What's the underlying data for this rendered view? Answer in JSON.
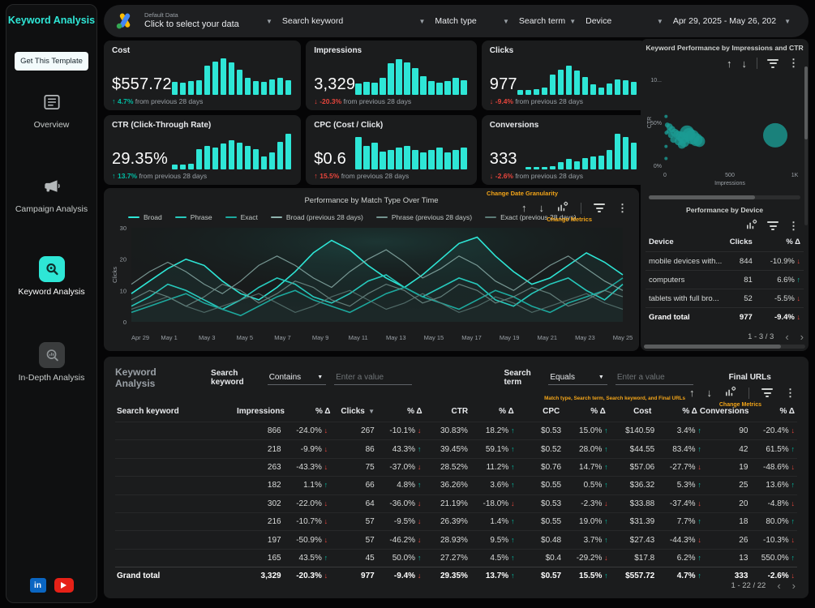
{
  "colors": {
    "accent": "#2ee6d6",
    "positive": "#00bfa5",
    "negative": "#e8453c",
    "annotation": "#f2a418",
    "linkedin": "#0a66c2",
    "youtube": "#e62117"
  },
  "sidebar": {
    "title": "Keyword Analysis",
    "cta": "Get This Template",
    "items": [
      {
        "label": "Overview",
        "icon": "document-icon",
        "active": false
      },
      {
        "label": "Campaign Analysis",
        "icon": "megaphone-icon",
        "active": false
      },
      {
        "label": "Keyword Analysis",
        "icon": "keyword-search-icon",
        "active": true
      },
      {
        "label": "In-Depth Analysis",
        "icon": "magnifier-chart-icon",
        "active": false
      }
    ],
    "social": [
      "linkedin",
      "youtube"
    ]
  },
  "topbar": {
    "data_source_label": "Default Data",
    "data_source_value": "Click to select your data",
    "filters": [
      {
        "label": "Search keyword"
      },
      {
        "label": "Match type"
      },
      {
        "label": "Search term"
      },
      {
        "label": "Device"
      }
    ],
    "date_range": "Apr 29, 2025 - May 26, 202"
  },
  "scorecards": [
    {
      "id": "cost",
      "title": "Cost",
      "value": "$557.72",
      "delta": "4.7%",
      "dir": "up",
      "tone": "good",
      "compare": "from previous 28 days",
      "spark": [
        0.35,
        0.33,
        0.36,
        0.4,
        0.78,
        0.9,
        0.97,
        0.88,
        0.68,
        0.45,
        0.36,
        0.35,
        0.42,
        0.46,
        0.4
      ]
    },
    {
      "id": "impressions",
      "title": "Impressions",
      "value": "3,329",
      "delta": "-20.3%",
      "dir": "down",
      "tone": "bad",
      "compare": "from previous 28 days",
      "spark": [
        0.3,
        0.34,
        0.32,
        0.45,
        0.85,
        0.95,
        0.88,
        0.72,
        0.5,
        0.36,
        0.32,
        0.36,
        0.46,
        0.4
      ]
    },
    {
      "id": "clicks",
      "title": "Clicks",
      "value": "977",
      "delta": "-9.4%",
      "dir": "down",
      "tone": "bad",
      "compare": "from previous 28 days",
      "spark": [
        0.12,
        0.12,
        0.15,
        0.2,
        0.55,
        0.68,
        0.78,
        0.65,
        0.48,
        0.28,
        0.2,
        0.3,
        0.42,
        0.4,
        0.34
      ]
    },
    {
      "id": "ctr",
      "title": "CTR (Click-Through Rate)",
      "value": "29.35%",
      "delta": "13.7%",
      "dir": "up",
      "tone": "good",
      "compare": "from previous 28 days",
      "spark": [
        0.12,
        0.13,
        0.15,
        0.55,
        0.62,
        0.58,
        0.7,
        0.78,
        0.72,
        0.62,
        0.55,
        0.35,
        0.45,
        0.75,
        0.95
      ]
    },
    {
      "id": "cpc",
      "title": "CPC (Cost / Click)",
      "value": "$0.6",
      "delta": "15.5%",
      "dir": "up",
      "tone": "bad",
      "compare": "from previous 28 days",
      "spark": [
        0.88,
        0.62,
        0.72,
        0.48,
        0.52,
        0.58,
        0.62,
        0.52,
        0.46,
        0.52,
        0.58,
        0.46,
        0.52,
        0.58
      ]
    },
    {
      "id": "conversions",
      "title": "Conversions",
      "value": "333",
      "delta": "-2.6%",
      "dir": "down",
      "tone": "bad",
      "compare": "from previous 28 days",
      "spark": [
        0.06,
        0.06,
        0.07,
        0.08,
        0.2,
        0.28,
        0.22,
        0.3,
        0.34,
        0.38,
        0.52,
        0.95,
        0.88,
        0.72
      ]
    }
  ],
  "line_chart": {
    "type": "line",
    "title": "Performance by Match Type Over Time",
    "annotation_granularity": "Change Date Granularity",
    "annotation_metrics": "Change Metrics",
    "ylabel": "Clicks",
    "yticks": [
      0,
      10,
      20,
      30
    ],
    "ymax": 30,
    "xticks": [
      "Apr 29",
      "May 1",
      "May 3",
      "May 5",
      "May 7",
      "May 9",
      "May 11",
      "May 13",
      "May 15",
      "May 17",
      "May 19",
      "May 21",
      "May 23",
      "May 25"
    ],
    "series": [
      {
        "name": "Broad",
        "color": "#2ee6d6",
        "values": [
          9,
          13,
          17,
          20,
          18,
          13,
          9,
          7,
          11,
          16,
          22,
          26,
          23,
          18,
          14,
          11,
          15,
          20,
          25,
          27,
          21,
          16,
          12,
          14,
          18,
          22,
          19,
          15
        ]
      },
      {
        "name": "Phrase",
        "color": "#27c9bc",
        "values": [
          5,
          8,
          12,
          10,
          7,
          4,
          7,
          11,
          14,
          12,
          8,
          6,
          9,
          13,
          15,
          11,
          8,
          11,
          14,
          12,
          7,
          5,
          9,
          12,
          14,
          10,
          7,
          12
        ]
      },
      {
        "name": "Exact",
        "color": "#1da99e",
        "values": [
          3,
          5,
          7,
          9,
          6,
          4,
          2,
          5,
          8,
          10,
          7,
          5,
          3,
          6,
          9,
          11,
          8,
          6,
          4,
          7,
          10,
          8,
          5,
          3,
          6,
          8,
          10,
          14
        ]
      },
      {
        "name": "Broad (previous 28 days)",
        "color": "#8fb3ae",
        "values": [
          12,
          16,
          19,
          16,
          12,
          9,
          13,
          18,
          21,
          18,
          14,
          11,
          16,
          20,
          23,
          19,
          14,
          17,
          21,
          18,
          13,
          10,
          14,
          18,
          21,
          17,
          13,
          10
        ]
      },
      {
        "name": "Phrase (previous 28 days)",
        "color": "#74938f",
        "values": [
          7,
          10,
          8,
          5,
          8,
          12,
          10,
          6,
          9,
          13,
          11,
          7,
          5,
          9,
          12,
          10,
          6,
          8,
          12,
          10,
          6,
          8,
          11,
          9,
          5,
          7,
          10,
          8
        ]
      },
      {
        "name": "Exact (previous 28 days)",
        "color": "#5c7b77",
        "values": [
          4,
          6,
          8,
          5,
          3,
          5,
          7,
          9,
          6,
          3,
          5,
          8,
          10,
          7,
          4,
          6,
          9,
          6,
          3,
          5,
          8,
          6,
          3,
          5,
          7,
          9,
          6,
          4
        ]
      }
    ]
  },
  "scatter": {
    "type": "scatter",
    "title": "Keyword Performance by Impressions and CTR",
    "xlabel": "Impressions",
    "ylabel": "CTR",
    "xticks": [
      "0",
      "500",
      "1K"
    ],
    "yticks": [
      "0%",
      "50%",
      "10..."
    ],
    "xmax": 1000,
    "ymax": 100,
    "points": [
      {
        "x": 8,
        "y": 57,
        "r": 2
      },
      {
        "x": 18,
        "y": 47,
        "r": 3
      },
      {
        "x": 35,
        "y": 45,
        "r": 4
      },
      {
        "x": 30,
        "y": 40,
        "r": 3
      },
      {
        "x": 12,
        "y": 38,
        "r": 2.5
      },
      {
        "x": 55,
        "y": 42,
        "r": 4
      },
      {
        "x": 75,
        "y": 38,
        "r": 5
      },
      {
        "x": 45,
        "y": 35,
        "r": 3.5
      },
      {
        "x": 95,
        "y": 36,
        "r": 5
      },
      {
        "x": 120,
        "y": 34,
        "r": 6
      },
      {
        "x": 65,
        "y": 30,
        "r": 4
      },
      {
        "x": 105,
        "y": 28,
        "r": 5
      },
      {
        "x": 140,
        "y": 32,
        "r": 7
      },
      {
        "x": 170,
        "y": 38,
        "r": 9
      },
      {
        "x": 185,
        "y": 36,
        "r": 8
      },
      {
        "x": 210,
        "y": 33,
        "r": 9
      },
      {
        "x": 240,
        "y": 30,
        "r": 8
      },
      {
        "x": 150,
        "y": 27,
        "r": 6
      },
      {
        "x": 265,
        "y": 28,
        "r": 7
      },
      {
        "x": 130,
        "y": 24,
        "r": 5
      },
      {
        "x": 8,
        "y": 22,
        "r": 2
      },
      {
        "x": 8,
        "y": 8,
        "r": 2
      },
      {
        "x": 850,
        "y": 35,
        "r": 15
      }
    ]
  },
  "device_table": {
    "title": "Performance by Device",
    "headers": [
      "Device",
      "Clicks",
      "% Δ"
    ],
    "rows": [
      {
        "device": "mobile devices with...",
        "clicks": "844",
        "delta": "-10.9%",
        "dir": "down"
      },
      {
        "device": "computers",
        "clicks": "81",
        "delta": "6.6%",
        "dir": "up"
      },
      {
        "device": "tablets with full bro...",
        "clicks": "52",
        "delta": "-5.5%",
        "dir": "down"
      }
    ],
    "total": {
      "device": "Grand total",
      "clicks": "977",
      "delta": "-9.4%",
      "dir": "down"
    },
    "pagination": "1 - 3 / 3"
  },
  "keyword_table": {
    "title": "Keyword Analysis",
    "filter1_label": "Search keyword",
    "filter1_op": "Contains",
    "filter1_placeholder": "Enter a value",
    "filter2_label": "Search term",
    "filter2_op": "Equals",
    "filter2_placeholder": "Enter a value",
    "filter3_label": "Final URLs",
    "annotation_fields": "Match type, Search term, Search keyword, and Final URLs",
    "annotation_metrics": "Change Metrics",
    "headers": [
      "Search keyword",
      "Impressions",
      "% Δ",
      "Clicks",
      "% Δ",
      "CTR",
      "% Δ",
      "CPC",
      "% Δ",
      "Cost",
      "% Δ",
      "Conversions",
      "% Δ"
    ],
    "sort_col": "Clicks",
    "rows": [
      {
        "keyword": "",
        "vals": [
          "866",
          "-24.0%",
          "267",
          "-10.1%",
          "30.83%",
          "18.2%",
          "$0.53",
          "15.0%",
          "$140.59",
          "3.4%",
          "90",
          "-20.4%"
        ],
        "dirs": [
          null,
          "down",
          null,
          "down",
          null,
          "up",
          null,
          "up",
          null,
          "up",
          null,
          "down"
        ]
      },
      {
        "keyword": "",
        "vals": [
          "218",
          "-9.9%",
          "86",
          "43.3%",
          "39.45%",
          "59.1%",
          "$0.52",
          "28.0%",
          "$44.55",
          "83.4%",
          "42",
          "61.5%"
        ],
        "dirs": [
          null,
          "down",
          null,
          "up",
          null,
          "up",
          null,
          "up",
          null,
          "up",
          null,
          "up"
        ]
      },
      {
        "keyword": "",
        "vals": [
          "263",
          "-43.3%",
          "75",
          "-37.0%",
          "28.52%",
          "11.2%",
          "$0.76",
          "14.7%",
          "$57.06",
          "-27.7%",
          "19",
          "-48.6%"
        ],
        "dirs": [
          null,
          "down",
          null,
          "down",
          null,
          "up",
          null,
          "up",
          null,
          "down",
          null,
          "down"
        ]
      },
      {
        "keyword": "",
        "vals": [
          "182",
          "1.1%",
          "66",
          "4.8%",
          "36.26%",
          "3.6%",
          "$0.55",
          "0.5%",
          "$36.32",
          "5.3%",
          "25",
          "13.6%"
        ],
        "dirs": [
          null,
          "up",
          null,
          "up",
          null,
          "up",
          null,
          "up",
          null,
          "up",
          null,
          "up"
        ]
      },
      {
        "keyword": "",
        "vals": [
          "302",
          "-22.0%",
          "64",
          "-36.0%",
          "21.19%",
          "-18.0%",
          "$0.53",
          "-2.3%",
          "$33.88",
          "-37.4%",
          "20",
          "-4.8%"
        ],
        "dirs": [
          null,
          "down",
          null,
          "down",
          null,
          "down",
          null,
          "down",
          null,
          "down",
          null,
          "down"
        ]
      },
      {
        "keyword": "",
        "vals": [
          "216",
          "-10.7%",
          "57",
          "-9.5%",
          "26.39%",
          "1.4%",
          "$0.55",
          "19.0%",
          "$31.39",
          "7.7%",
          "18",
          "80.0%"
        ],
        "dirs": [
          null,
          "down",
          null,
          "down",
          null,
          "up",
          null,
          "up",
          null,
          "up",
          null,
          "up"
        ]
      },
      {
        "keyword": "",
        "vals": [
          "197",
          "-50.9%",
          "57",
          "-46.2%",
          "28.93%",
          "9.5%",
          "$0.48",
          "3.7%",
          "$27.43",
          "-44.3%",
          "26",
          "-10.3%"
        ],
        "dirs": [
          null,
          "down",
          null,
          "down",
          null,
          "up",
          null,
          "up",
          null,
          "down",
          null,
          "down"
        ]
      },
      {
        "keyword": "",
        "vals": [
          "165",
          "43.5%",
          "45",
          "50.0%",
          "27.27%",
          "4.5%",
          "$0.4",
          "-29.2%",
          "$17.8",
          "6.2%",
          "13",
          "550.0%"
        ],
        "dirs": [
          null,
          "up",
          null,
          "up",
          null,
          "up",
          null,
          "down",
          null,
          "up",
          null,
          "up"
        ]
      }
    ],
    "total": {
      "keyword": "Grand total",
      "vals": [
        "3,329",
        "-20.3%",
        "977",
        "-9.4%",
        "29.35%",
        "13.7%",
        "$0.57",
        "15.5%",
        "$557.72",
        "4.7%",
        "333",
        "-2.6%"
      ],
      "dirs": [
        null,
        "down",
        null,
        "down",
        null,
        "up",
        null,
        "up",
        null,
        "up",
        null,
        "down"
      ]
    },
    "pagination": "1 - 22 / 22"
  }
}
